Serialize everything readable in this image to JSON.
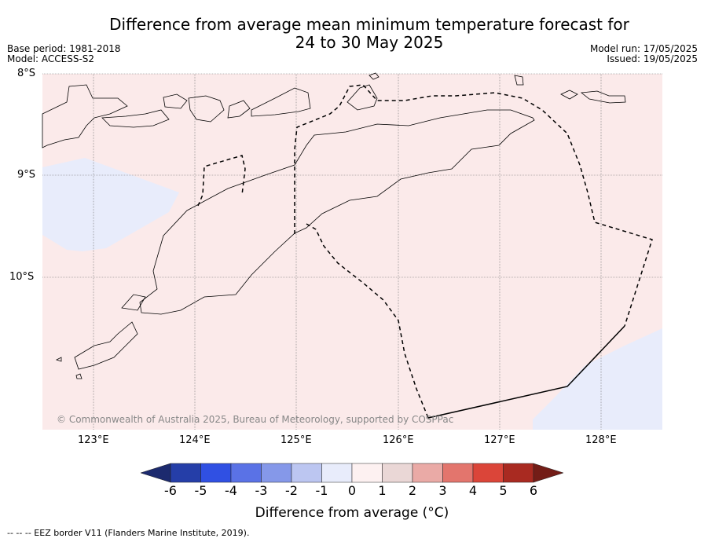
{
  "header": {
    "title_line1": "Difference from average mean minimum temperature forecast for",
    "title_line2": "24 to 30 May 2025",
    "base_period": "Base period: 1981-2018",
    "model": "Model: ACCESS-S2",
    "model_run": "Model run: 17/05/2025",
    "issued": "Issued: 19/05/2025"
  },
  "map": {
    "lat_labels": [
      "8°S",
      "9°S",
      "10°S"
    ],
    "lon_labels": [
      "123°E",
      "124°E",
      "125°E",
      "126°E",
      "127°E",
      "128°E"
    ],
    "lat_range": [
      -11.5,
      -8.0
    ],
    "lon_range": [
      122.5,
      128.6
    ],
    "background_color": "#fbeaea",
    "cool_color": "#e8ecfb",
    "copyright": "© Commonwealth of Australia 2025, Bureau of Meteorology, supported by COSPPac"
  },
  "colorbar": {
    "ticks": [
      "-6",
      "-5",
      "-4",
      "-3",
      "-2",
      "-1",
      "0",
      "1",
      "2",
      "3",
      "4",
      "5",
      "6"
    ],
    "colors": [
      "#253ea8",
      "#3050e3",
      "#5a72e6",
      "#8598e9",
      "#bcc6f1",
      "#e8ecfb",
      "#fdf1f1",
      "#ead7d6",
      "#eaaaa6",
      "#e3756d",
      "#db4539",
      "#a92a21"
    ],
    "extend_low_color": "#1c2a6e",
    "extend_high_color": "#731d17",
    "label": "Difference from average (°C)"
  },
  "footer": {
    "legend": "-- -- -- EEZ border V11 (Flanders Marine Institute, 2019)."
  }
}
